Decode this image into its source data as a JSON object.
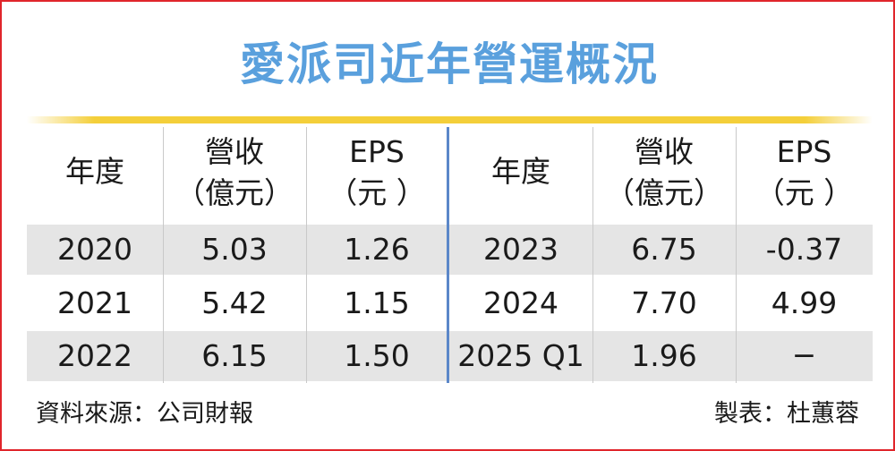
{
  "title": "愛派司近年營運概況",
  "chart_data": {
    "type": "table",
    "columns": [
      {
        "line1": "年度",
        "line2": ""
      },
      {
        "line1": "營收",
        "line2": "（億元）"
      },
      {
        "line1": "EPS",
        "line2": "（元 ）"
      },
      {
        "line1": "年度",
        "line2": ""
      },
      {
        "line1": "營收",
        "line2": "（億元）"
      },
      {
        "line1": "EPS",
        "line2": "（元 ）"
      }
    ],
    "rows": [
      [
        "2020",
        "5.03",
        "1.26",
        "2023",
        "6.75",
        "-0.37"
      ],
      [
        "2021",
        "5.42",
        "1.15",
        "2024",
        "7.70",
        "4.99"
      ],
      [
        "2022",
        "6.15",
        "1.50",
        "2025 Q1",
        "1.96",
        "─"
      ]
    ]
  },
  "footer": {
    "source": "資料來源：公司財報",
    "maker": "製表：杜蕙蓉"
  },
  "colors": {
    "title": "#5aa0dd",
    "border": "#e0252b",
    "accent_line": "#f4cf3a",
    "divider": "#5b87c9",
    "band": "#e5e5e5"
  }
}
